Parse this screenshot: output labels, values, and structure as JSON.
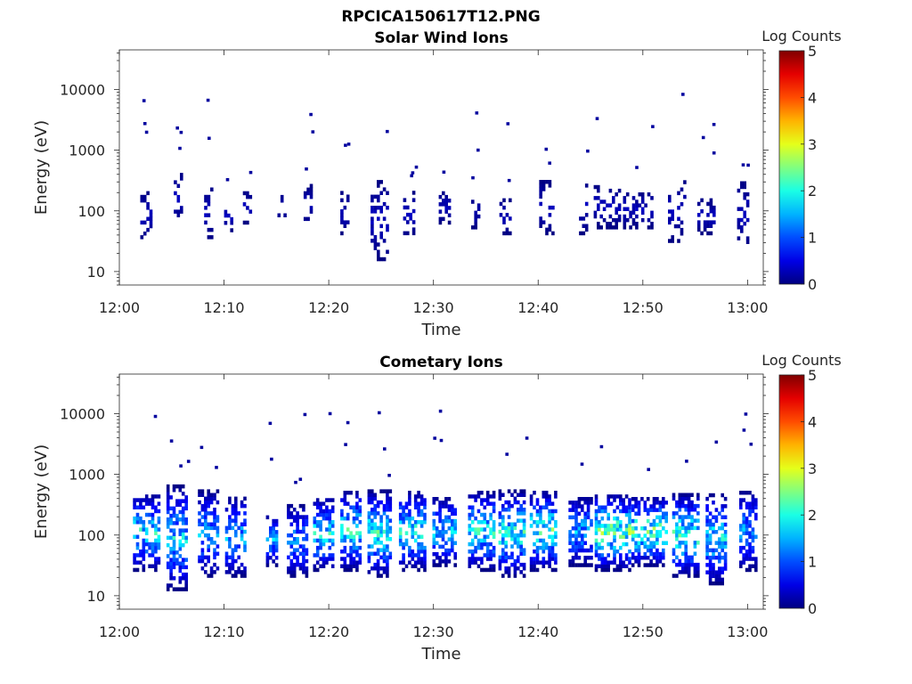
{
  "figure_title": "RPCICA150617T12.PNG",
  "chart_data": [
    {
      "type": "heatmap",
      "title": "Solar Wind Ions",
      "xlabel": "Time",
      "ylabel": "Energy (eV)",
      "xticks": [
        "12:00",
        "12:10",
        "12:20",
        "12:30",
        "12:40",
        "12:50",
        "13:00"
      ],
      "x_tick_minutes": [
        0,
        10,
        20,
        30,
        40,
        50,
        60
      ],
      "xlim_minutes": [
        0,
        61.5
      ],
      "yticks": [
        "10",
        "100",
        "1000",
        "10000"
      ],
      "y_tick_values": [
        10,
        100,
        1000,
        10000
      ],
      "ylim": [
        6,
        45000
      ],
      "y_scale": "log",
      "colorbar": {
        "label": "Log Counts",
        "ticks": [
          "0",
          "1",
          "2",
          "3",
          "4",
          "5"
        ],
        "range": [
          0,
          5
        ],
        "colormap": "jet"
      },
      "bursts": [
        {
          "t": 2.5,
          "lo": 30,
          "hi": 200,
          "d": 0.5
        },
        {
          "t": 5.6,
          "lo": 60,
          "hi": 400,
          "d": 0.4
        },
        {
          "t": 8.5,
          "lo": 30,
          "hi": 250,
          "d": 0.4
        },
        {
          "t": 10.4,
          "lo": 45,
          "hi": 120,
          "d": 0.4
        },
        {
          "t": 12.1,
          "lo": 60,
          "hi": 200,
          "d": 0.3
        },
        {
          "t": 15.5,
          "lo": 60,
          "hi": 200,
          "d": 0.4
        },
        {
          "t": 18.0,
          "lo": 60,
          "hi": 250,
          "d": 0.4
        },
        {
          "t": 21.5,
          "lo": 40,
          "hi": 200,
          "d": 0.4
        },
        {
          "t": 24.8,
          "lo": 15,
          "hi": 300,
          "d": 0.8
        },
        {
          "t": 27.8,
          "lo": 35,
          "hi": 200,
          "d": 0.7
        },
        {
          "t": 31.0,
          "lo": 60,
          "hi": 200,
          "d": 0.5
        },
        {
          "t": 34.0,
          "lo": 50,
          "hi": 150,
          "d": 0.4
        },
        {
          "t": 36.8,
          "lo": 40,
          "hi": 150,
          "d": 0.5
        },
        {
          "t": 40.8,
          "lo": 40,
          "hi": 300,
          "d": 0.7
        },
        {
          "t": 44.3,
          "lo": 40,
          "hi": 300,
          "d": 0.4
        },
        {
          "t": 46.5,
          "lo": 50,
          "hi": 250,
          "d": 1.2
        },
        {
          "t": 49.5,
          "lo": 50,
          "hi": 200,
          "d": 1.4
        },
        {
          "t": 53.2,
          "lo": 30,
          "hi": 300,
          "d": 0.8
        },
        {
          "t": 56.0,
          "lo": 40,
          "hi": 150,
          "d": 0.8
        },
        {
          "t": 59.5,
          "lo": 25,
          "hi": 300,
          "d": 0.5
        }
      ]
    },
    {
      "type": "heatmap",
      "title": "Cometary Ions",
      "xlabel": "Time",
      "ylabel": "Energy (eV)",
      "xticks": [
        "12:00",
        "12:10",
        "12:20",
        "12:30",
        "12:40",
        "12:50",
        "13:00"
      ],
      "x_tick_minutes": [
        0,
        10,
        20,
        30,
        40,
        50,
        60
      ],
      "xlim_minutes": [
        0,
        61.5
      ],
      "yticks": [
        "10",
        "100",
        "1000",
        "10000"
      ],
      "y_tick_values": [
        10,
        100,
        1000,
        10000
      ],
      "ylim": [
        6,
        45000
      ],
      "y_scale": "log",
      "colorbar": {
        "label": "Log Counts",
        "ticks": [
          "0",
          "1",
          "2",
          "3",
          "4",
          "5"
        ],
        "range": [
          0,
          5
        ],
        "colormap": "jet"
      },
      "bursts": [
        {
          "t": 2.5,
          "lo": 25,
          "hi": 450,
          "d": 1.2,
          "peak": 2.2
        },
        {
          "t": 5.5,
          "lo": 12,
          "hi": 600,
          "d": 1.0,
          "peak": 2.0
        },
        {
          "t": 8.5,
          "lo": 20,
          "hi": 500,
          "d": 1.0,
          "peak": 1.7
        },
        {
          "t": 11.0,
          "lo": 20,
          "hi": 400,
          "d": 0.9,
          "peak": 1.8
        },
        {
          "t": 14.5,
          "lo": 30,
          "hi": 200,
          "d": 0.5,
          "peak": 1.8
        },
        {
          "t": 17.0,
          "lo": 20,
          "hi": 300,
          "d": 1.0,
          "peak": 1.6
        },
        {
          "t": 19.5,
          "lo": 25,
          "hi": 400,
          "d": 1.0,
          "peak": 2.2
        },
        {
          "t": 22.0,
          "lo": 25,
          "hi": 500,
          "d": 0.9,
          "peak": 2.3
        },
        {
          "t": 24.8,
          "lo": 20,
          "hi": 500,
          "d": 1.1,
          "peak": 2.4
        },
        {
          "t": 28.0,
          "lo": 25,
          "hi": 500,
          "d": 1.3,
          "peak": 2.3
        },
        {
          "t": 31.0,
          "lo": 30,
          "hi": 400,
          "d": 1.1,
          "peak": 2.0
        },
        {
          "t": 34.5,
          "lo": 25,
          "hi": 500,
          "d": 1.2,
          "peak": 2.3
        },
        {
          "t": 37.5,
          "lo": 20,
          "hi": 500,
          "d": 1.3,
          "peak": 2.4
        },
        {
          "t": 40.5,
          "lo": 25,
          "hi": 500,
          "d": 1.3,
          "peak": 2.5
        },
        {
          "t": 44.0,
          "lo": 30,
          "hi": 400,
          "d": 1.1,
          "peak": 1.8
        },
        {
          "t": 47.0,
          "lo": 25,
          "hi": 450,
          "d": 1.6,
          "peak": 2.8
        },
        {
          "t": 50.5,
          "lo": 30,
          "hi": 400,
          "d": 1.6,
          "peak": 2.8
        },
        {
          "t": 54.0,
          "lo": 20,
          "hi": 450,
          "d": 1.2,
          "peak": 2.6
        },
        {
          "t": 57.0,
          "lo": 15,
          "hi": 450,
          "d": 1.0,
          "peak": 2.2
        },
        {
          "t": 60.0,
          "lo": 25,
          "hi": 500,
          "d": 0.8,
          "peak": 1.7
        }
      ]
    }
  ]
}
